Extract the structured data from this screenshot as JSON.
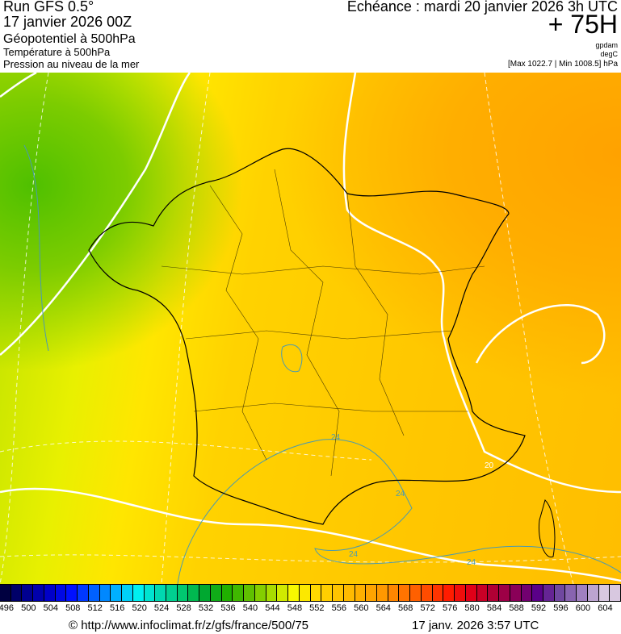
{
  "header": {
    "run": "Run GFS 0.5°",
    "run_date": "17 janvier 2026 00Z",
    "field1": "Géopotentiel à 500hPa",
    "field2": "Température à 500hPa",
    "field3": "Pression au niveau de la mer",
    "valid": "Echéance : mardi 20 janvier 2026 3h UTC",
    "lead": "+ 75H",
    "unit1": "gpdam",
    "unit2": "degC",
    "pressure_range": "[Max 1022.7 | Min 1008.5] hPa"
  },
  "map": {
    "contour_labels": [
      "24",
      "24",
      "24",
      "24",
      "20"
    ]
  },
  "colorbar": {
    "ticks": [
      "496",
      "500",
      "504",
      "508",
      "512",
      "516",
      "520",
      "524",
      "528",
      "532",
      "536",
      "540",
      "544",
      "548",
      "552",
      "556",
      "560",
      "564",
      "568",
      "572",
      "576",
      "580",
      "584",
      "588",
      "592",
      "596",
      "600",
      "604"
    ],
    "colors": [
      "#000040",
      "#000090",
      "#0000c8",
      "#0010ff",
      "#0060ff",
      "#00b0ff",
      "#00f0f0",
      "#00d8b0",
      "#00c870",
      "#00a830",
      "#20b000",
      "#60c000",
      "#a8dc00",
      "#f8f800",
      "#ffd800",
      "#ffc400",
      "#ffb000",
      "#ff9800",
      "#ff7400",
      "#ff4c00",
      "#ff1c00",
      "#e00018",
      "#b00034",
      "#8a0058",
      "#5a0088",
      "#7048a0",
      "#a080c0",
      "#d8c8e0"
    ]
  },
  "footer": {
    "source": "© http://www.infoclimat.fr/z/gfs/france/500/75",
    "generated": "17 janv. 2026  3:57 UTC"
  }
}
